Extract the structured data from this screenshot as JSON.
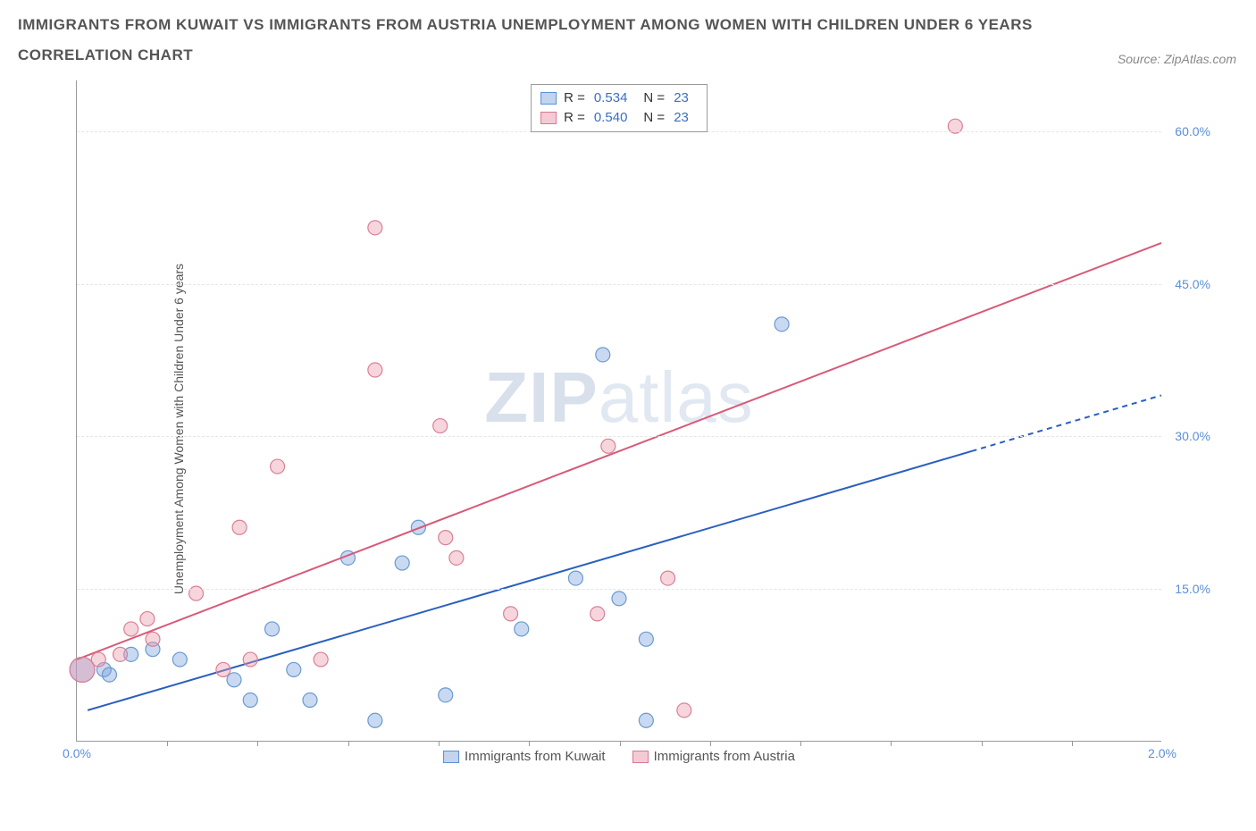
{
  "title_line1": "IMMIGRANTS FROM KUWAIT VS IMMIGRANTS FROM AUSTRIA UNEMPLOYMENT AMONG WOMEN WITH CHILDREN UNDER 6 YEARS",
  "title_line2": "CORRELATION CHART",
  "source": "Source: ZipAtlas.com",
  "y_axis_label": "Unemployment Among Women with Children Under 6 years",
  "watermark_a": "ZIP",
  "watermark_b": "atlas",
  "chart": {
    "type": "scatter",
    "xlim": [
      0.0,
      2.0
    ],
    "ylim": [
      0.0,
      65.0
    ],
    "x_ticks": [
      0.0,
      2.0
    ],
    "x_tick_labels": [
      "0.0%",
      "2.0%"
    ],
    "x_minor_ticks": [
      0.167,
      0.333,
      0.5,
      0.667,
      0.833,
      1.0,
      1.167,
      1.333,
      1.5,
      1.667,
      1.833
    ],
    "y_gridlines": [
      15.0,
      30.0,
      45.0,
      60.0
    ],
    "y_tick_labels": [
      "15.0%",
      "30.0%",
      "45.0%",
      "60.0%"
    ],
    "grid_color": "#e5e5e5",
    "background_color": "#ffffff",
    "axis_color": "#999999",
    "tick_label_color": "#5b8fd6",
    "tick_label_fontsize": 14,
    "series": [
      {
        "name": "Immigrants from Kuwait",
        "color_fill": "rgba(120,160,220,0.40)",
        "color_stroke": "#6a9ad0",
        "marker_r": 8,
        "big_marker_r": 14,
        "regression": {
          "x1": 0.02,
          "y1": 3.0,
          "x2": 1.65,
          "y2": 28.5,
          "x3": 2.0,
          "y3": 34.0,
          "color": "#2a5fc0",
          "width": 2,
          "dash_after": 1.65
        },
        "R": "0.534",
        "N": "23",
        "points": [
          {
            "x": 0.01,
            "y": 7.0,
            "r": 14
          },
          {
            "x": 0.05,
            "y": 7.0
          },
          {
            "x": 0.06,
            "y": 6.5
          },
          {
            "x": 0.1,
            "y": 8.5
          },
          {
            "x": 0.14,
            "y": 9.0
          },
          {
            "x": 0.19,
            "y": 8.0
          },
          {
            "x": 0.29,
            "y": 6.0
          },
          {
            "x": 0.32,
            "y": 4.0
          },
          {
            "x": 0.36,
            "y": 11.0
          },
          {
            "x": 0.4,
            "y": 7.0
          },
          {
            "x": 0.43,
            "y": 4.0
          },
          {
            "x": 0.5,
            "y": 18.0
          },
          {
            "x": 0.55,
            "y": 2.0
          },
          {
            "x": 0.6,
            "y": 17.5
          },
          {
            "x": 0.63,
            "y": 21.0
          },
          {
            "x": 0.68,
            "y": 4.5
          },
          {
            "x": 0.82,
            "y": 11.0
          },
          {
            "x": 0.92,
            "y": 16.0
          },
          {
            "x": 0.97,
            "y": 38.0
          },
          {
            "x": 1.0,
            "y": 14.0
          },
          {
            "x": 1.05,
            "y": 2.0
          },
          {
            "x": 1.05,
            "y": 10.0
          },
          {
            "x": 1.3,
            "y": 41.0
          }
        ]
      },
      {
        "name": "Immigrants from Austria",
        "color_fill": "rgba(232,150,170,0.40)",
        "color_stroke": "#da8095",
        "marker_r": 8,
        "big_marker_r": 14,
        "regression": {
          "x1": 0.0,
          "y1": 8.0,
          "x2": 2.0,
          "y2": 49.0,
          "color": "#d85a78",
          "width": 2
        },
        "R": "0.540",
        "N": "23",
        "points": [
          {
            "x": 0.01,
            "y": 7.0,
            "r": 14
          },
          {
            "x": 0.04,
            "y": 8.0
          },
          {
            "x": 0.08,
            "y": 8.5
          },
          {
            "x": 0.1,
            "y": 11.0
          },
          {
            "x": 0.13,
            "y": 12.0
          },
          {
            "x": 0.14,
            "y": 10.0
          },
          {
            "x": 0.22,
            "y": 14.5
          },
          {
            "x": 0.27,
            "y": 7.0
          },
          {
            "x": 0.3,
            "y": 21.0
          },
          {
            "x": 0.32,
            "y": 8.0
          },
          {
            "x": 0.37,
            "y": 27.0
          },
          {
            "x": 0.45,
            "y": 8.0
          },
          {
            "x": 0.55,
            "y": 50.5
          },
          {
            "x": 0.55,
            "y": 36.5
          },
          {
            "x": 0.67,
            "y": 31.0
          },
          {
            "x": 0.68,
            "y": 20.0
          },
          {
            "x": 0.7,
            "y": 18.0
          },
          {
            "x": 0.8,
            "y": 12.5
          },
          {
            "x": 0.96,
            "y": 12.5
          },
          {
            "x": 0.98,
            "y": 29.0
          },
          {
            "x": 1.09,
            "y": 16.0
          },
          {
            "x": 1.12,
            "y": 3.0
          },
          {
            "x": 1.62,
            "y": 60.5
          }
        ]
      }
    ],
    "legend_top": {
      "labels": [
        "R =",
        "N ="
      ]
    },
    "bottom_legend": [
      {
        "label": "Immigrants from Kuwait",
        "swatch": "blue"
      },
      {
        "label": "Immigrants from Austria",
        "swatch": "pink"
      }
    ]
  }
}
